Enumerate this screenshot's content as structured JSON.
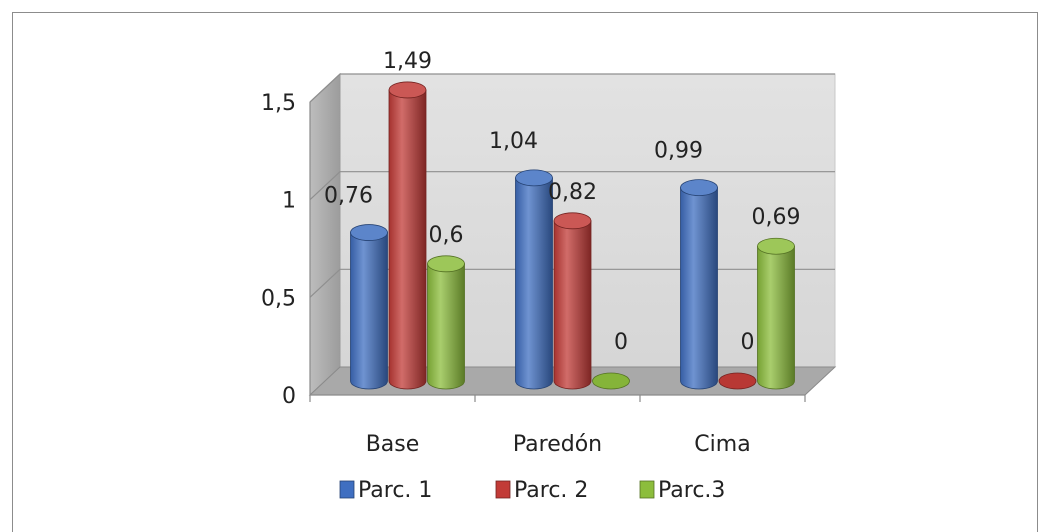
{
  "chart_data": {
    "type": "bar",
    "style": "3d-cylinder",
    "categories": [
      "Base",
      "Paredón",
      "Cima"
    ],
    "series": [
      {
        "name": "Parc. 1",
        "values": [
          0.76,
          1.04,
          0.99
        ],
        "labels": [
          "0,76",
          "1,04",
          "0,99"
        ],
        "color": "#3f6fc1"
      },
      {
        "name": "Parc. 2",
        "values": [
          1.49,
          0.82,
          0
        ],
        "labels": [
          "1,49",
          "0,82",
          "0"
        ],
        "color": "#c23b37"
      },
      {
        "name": "Parc.3",
        "values": [
          0.6,
          0,
          0.69
        ],
        "labels": [
          "0,6",
          "0",
          "0,69"
        ],
        "color": "#8cbd3c"
      }
    ],
    "ylim": [
      0,
      1.5
    ],
    "yticks": [
      0,
      0.5,
      1,
      1.5
    ],
    "ytick_labels": [
      "0",
      "0,5",
      "1",
      "1,5"
    ],
    "grid": true,
    "legend_position": "bottom",
    "title": "",
    "xlabel": "",
    "ylabel": ""
  }
}
